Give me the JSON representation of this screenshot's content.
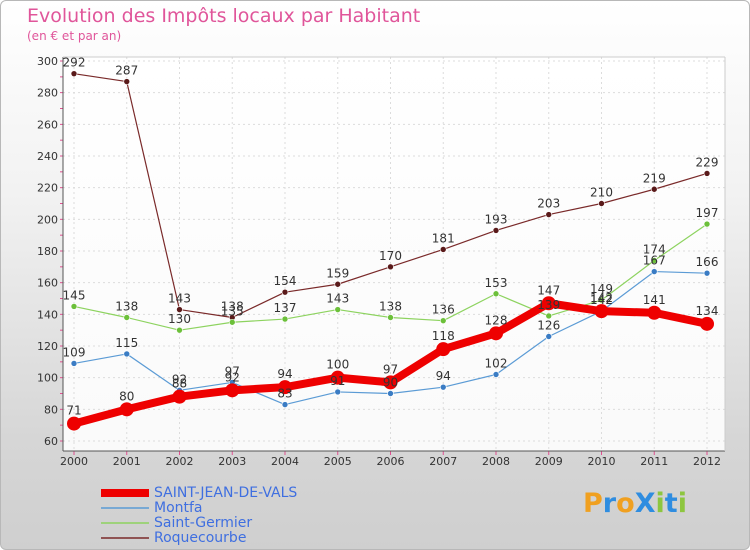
{
  "header": {
    "title": "Evolution des Impôts locaux par Habitant",
    "subtitle": "(en € et par an)"
  },
  "logo": {
    "text": "ProXiti",
    "letters": [
      "P",
      "r",
      "o",
      "X",
      "i",
      "t",
      "i"
    ]
  },
  "chart_data": {
    "type": "line",
    "title": "Evolution des Impôts locaux par Habitant",
    "subtitle": "(en € et par an)",
    "categories": [
      "2000",
      "2001",
      "2002",
      "2003",
      "2004",
      "2005",
      "2006",
      "2007",
      "2008",
      "2009",
      "2010",
      "2011",
      "2012"
    ],
    "ylim": [
      60,
      300
    ],
    "yticks": [
      60,
      80,
      100,
      120,
      140,
      160,
      180,
      200,
      220,
      240,
      260,
      280,
      300
    ],
    "grid": true,
    "legend_position": "bottom-left",
    "series": [
      {
        "name": "SAINT-JEAN-DE-VALS",
        "color": "#ee0000",
        "values": [
          71,
          80,
          88,
          92,
          94,
          100,
          97,
          118,
          128,
          147,
          142,
          141,
          134
        ]
      },
      {
        "name": "Montfa",
        "color": "#5b9bd5",
        "values": [
          109,
          115,
          92,
          97,
          83,
          91,
          90,
          94,
          102,
          126,
          142,
          167,
          166
        ]
      },
      {
        "name": "Saint-Germier",
        "color": "#8dd35f",
        "values": [
          145,
          138,
          130,
          135,
          137,
          143,
          138,
          136,
          153,
          139,
          149,
          174,
          197
        ]
      },
      {
        "name": "Roquecourbe",
        "color": "#7a2a2a",
        "values": [
          292,
          287,
          143,
          138,
          154,
          159,
          170,
          181,
          193,
          203,
          210,
          219,
          229
        ]
      }
    ],
    "data_labels": [
      {
        "series": "SAINT-JEAN-DE-VALS",
        "labels": [
          "71",
          "80",
          "88",
          "92",
          "94",
          "100",
          "97",
          "118",
          "128",
          "147",
          "142",
          "141",
          "134"
        ]
      },
      {
        "series": "Montfa",
        "labels": [
          "109",
          "115",
          "92",
          "97",
          "83",
          "91",
          "90",
          "94",
          "102",
          "126",
          "142",
          "167",
          "166"
        ]
      },
      {
        "series": "Saint-Germier",
        "labels": [
          "145",
          "138",
          "130",
          "135",
          "137",
          "143",
          "138",
          "136",
          "153",
          "139",
          "149",
          "174",
          "197"
        ]
      },
      {
        "series": "Roquecourbe",
        "labels": [
          "292",
          "287",
          "143",
          "138",
          "154",
          "159",
          "170",
          "181",
          "193",
          "203",
          "210",
          "219",
          "229"
        ]
      }
    ]
  }
}
